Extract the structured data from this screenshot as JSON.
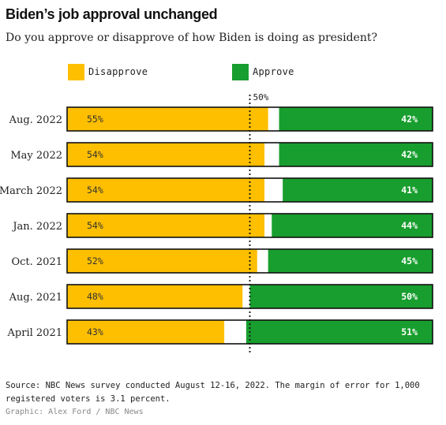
{
  "title": "Biden’s job approval unchanged",
  "subtitle": "Do you approve or disapprove of how Biden is doing as president?",
  "legend": {
    "disapprove_label": "Disapprove",
    "approve_label": "Approve"
  },
  "colors": {
    "disapprove": "#FDBF00",
    "approve": "#189E2E",
    "remainder": "#FFFFFF",
    "border": "#111111"
  },
  "reference_label": "50%",
  "footer": {
    "source": "Source: NBC News survey conducted August 12-16, 2022. The margin of error for 1,000 registered voters is 3.1 percent.",
    "credit": "Graphic: Alex Ford / NBC News"
  },
  "chart_data": {
    "type": "bar",
    "orientation": "horizontal-stacked",
    "categories": [
      "Aug. 2022",
      "May 2022",
      "March 2022",
      "Jan. 2022",
      "Oct. 2021",
      "Aug. 2021",
      "April 2021"
    ],
    "series": [
      {
        "name": "Disapprove",
        "values": [
          55,
          54,
          54,
          54,
          52,
          48,
          43
        ],
        "labels": [
          "55%",
          "54%",
          "54%",
          "54%",
          "52%",
          "48%",
          "43%"
        ]
      },
      {
        "name": "Approve",
        "values": [
          42,
          42,
          41,
          44,
          45,
          50,
          51
        ],
        "labels": [
          "42%",
          "42%",
          "41%",
          "44%",
          "45%",
          "50%",
          "51%"
        ]
      }
    ],
    "xlim": [
      0,
      100
    ],
    "reference_line": 50,
    "legend_position": "top-left"
  }
}
